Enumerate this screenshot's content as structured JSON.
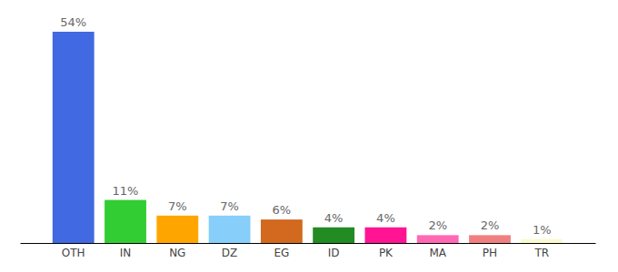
{
  "chart_data": {
    "type": "bar",
    "categories": [
      "OTH",
      "IN",
      "NG",
      "DZ",
      "EG",
      "ID",
      "PK",
      "MA",
      "PH",
      "TR"
    ],
    "values": [
      54,
      11,
      7,
      7,
      6,
      4,
      4,
      2,
      2,
      1
    ],
    "value_labels": [
      "54%",
      "11%",
      "7%",
      "7%",
      "6%",
      "4%",
      "4%",
      "2%",
      "2%",
      "1%"
    ],
    "colors": [
      "#4169e1",
      "#32cd32",
      "#ffa500",
      "#87cefa",
      "#d2691e",
      "#228b22",
      "#ff1493",
      "#ff69b4",
      "#f08080",
      "#fafad2"
    ],
    "ylim": [
      0,
      54
    ],
    "data_labels": true,
    "tick_labels": "x",
    "grid": false
  }
}
